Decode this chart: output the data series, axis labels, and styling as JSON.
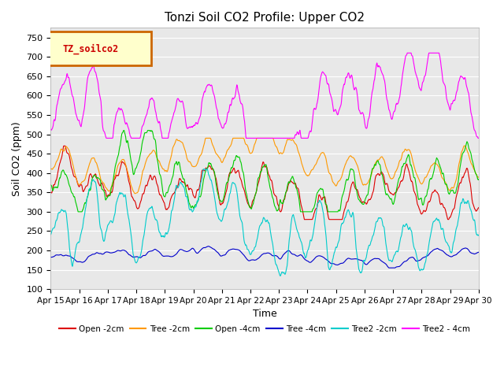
{
  "title": "Tonzi Soil CO2 Profile: Upper CO2",
  "xlabel": "Time",
  "ylabel": "Soil CO2 (ppm)",
  "ylim": [
    100,
    775
  ],
  "yticks": [
    100,
    150,
    200,
    250,
    300,
    350,
    400,
    450,
    500,
    550,
    600,
    650,
    700,
    750
  ],
  "xtick_labels": [
    "Apr 15",
    "Apr 16",
    "Apr 17",
    "Apr 18",
    "Apr 19",
    "Apr 20",
    "Apr 21",
    "Apr 22",
    "Apr 23",
    "Apr 24",
    "Apr 25",
    "Apr 26",
    "Apr 27",
    "Apr 28",
    "Apr 29",
    "Apr 30"
  ],
  "legend_box_label": "TZ_soilco2",
  "legend_box_color": "#ffffcc",
  "legend_box_edgecolor": "#cc6600",
  "legend_box_textcolor": "#cc0000",
  "series": [
    {
      "label": "Open -2cm",
      "color": "#dd0000"
    },
    {
      "label": "Tree -2cm",
      "color": "#ff9900"
    },
    {
      "label": "Open -4cm",
      "color": "#00cc00"
    },
    {
      "label": "Tree -4cm",
      "color": "#0000cc"
    },
    {
      "label": "Tree2 -2cm",
      "color": "#00cccc"
    },
    {
      "label": "Tree2 - 4cm",
      "color": "#ff00ff"
    }
  ],
  "bg_color": "#e8e8e8",
  "fig_bg_color": "#ffffff",
  "grid_color": "#ffffff",
  "n_points": 1440,
  "seed": 42
}
